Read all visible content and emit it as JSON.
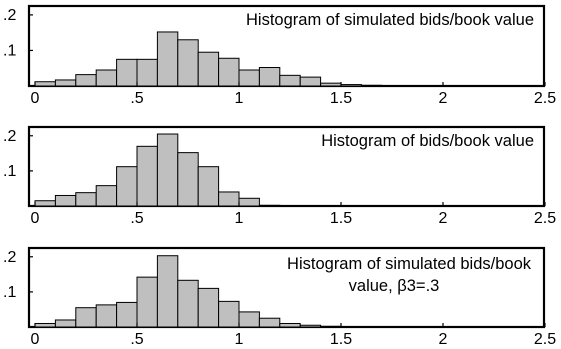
{
  "chart_data": [
    {
      "type": "bar",
      "title_lines": [
        "Histogram of simulated bids/book value"
      ],
      "xlim": [
        0,
        2.5
      ],
      "ylim": [
        0,
        0.225
      ],
      "bin_width": 0.1,
      "x_ticks": [
        0,
        0.5,
        1,
        1.5,
        2,
        2.5
      ],
      "x_tick_labels": [
        "0",
        ".5",
        "1",
        "1.5",
        "2",
        "2.5"
      ],
      "y_ticks": [
        0.1,
        0.2
      ],
      "y_tick_labels": [
        ".1",
        ".2"
      ],
      "x": [
        0.05,
        0.15,
        0.25,
        0.35,
        0.45,
        0.55,
        0.65,
        0.75,
        0.85,
        0.95,
        1.05,
        1.15,
        1.25,
        1.35,
        1.45,
        1.55,
        1.65,
        1.75,
        1.85
      ],
      "values": [
        0.012,
        0.017,
        0.032,
        0.045,
        0.075,
        0.075,
        0.152,
        0.13,
        0.095,
        0.078,
        0.045,
        0.052,
        0.03,
        0.025,
        0.008,
        0.004,
        0.002,
        0.001,
        0.0005
      ]
    },
    {
      "type": "bar",
      "title_lines": [
        "Histogram of bids/book value"
      ],
      "xlim": [
        0,
        2.5
      ],
      "ylim": [
        0,
        0.225
      ],
      "bin_width": 0.1,
      "x_ticks": [
        0,
        0.5,
        1,
        1.5,
        2,
        2.5
      ],
      "x_tick_labels": [
        "0",
        ".5",
        "1",
        "1.5",
        "2",
        "2.5"
      ],
      "y_ticks": [
        0.1,
        0.2
      ],
      "y_tick_labels": [
        ".1",
        ".2"
      ],
      "x": [
        0.05,
        0.15,
        0.25,
        0.35,
        0.45,
        0.55,
        0.65,
        0.75,
        0.85,
        0.95,
        1.05,
        1.15,
        1.25
      ],
      "values": [
        0.015,
        0.03,
        0.038,
        0.058,
        0.112,
        0.17,
        0.205,
        0.152,
        0.112,
        0.04,
        0.022,
        0.002,
        0.001
      ]
    },
    {
      "type": "bar",
      "title_lines": [
        "Histogram of simulated bids/book",
        "value, β3=.3"
      ],
      "xlim": [
        0,
        2.5
      ],
      "ylim": [
        0,
        0.225
      ],
      "bin_width": 0.1,
      "x_ticks": [
        0,
        0.5,
        1,
        1.5,
        2,
        2.5
      ],
      "x_tick_labels": [
        "0",
        ".5",
        "1",
        "1.5",
        "2",
        "2.5"
      ],
      "y_ticks": [
        0.1,
        0.2
      ],
      "y_tick_labels": [
        ".1",
        ".2"
      ],
      "x": [
        0.05,
        0.15,
        0.25,
        0.35,
        0.45,
        0.55,
        0.65,
        0.75,
        0.85,
        0.95,
        1.05,
        1.15,
        1.25,
        1.35,
        1.45,
        1.55
      ],
      "values": [
        0.01,
        0.02,
        0.055,
        0.063,
        0.07,
        0.142,
        0.203,
        0.133,
        0.11,
        0.073,
        0.043,
        0.025,
        0.01,
        0.005,
        0.002,
        0.001
      ]
    }
  ],
  "colors": {
    "bar_fill": "#bfbfbf",
    "bar_stroke": "#000000",
    "frame": "#000000"
  }
}
